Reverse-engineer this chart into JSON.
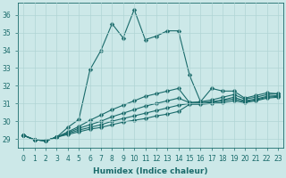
{
  "xlabel": "Humidex (Indice chaleur)",
  "bg_color": "#cce8e8",
  "line_color": "#1a6b6b",
  "grid_color": "#b0d4d4",
  "xlim": [
    -0.5,
    23.5
  ],
  "ylim": [
    28.5,
    36.7
  ],
  "yticks": [
    29,
    30,
    31,
    32,
    33,
    34,
    35,
    36
  ],
  "xticks": [
    0,
    1,
    2,
    3,
    4,
    5,
    6,
    7,
    8,
    9,
    10,
    11,
    12,
    13,
    14,
    15,
    16,
    17,
    18,
    19,
    20,
    21,
    22,
    23
  ],
  "lines": [
    [
      29.2,
      28.95,
      28.9,
      29.1,
      29.65,
      30.1,
      32.9,
      34.0,
      35.5,
      34.7,
      36.3,
      34.6,
      34.8,
      35.1,
      35.1,
      32.6,
      31.1,
      31.85,
      31.7,
      31.7,
      31.3,
      31.45,
      31.6,
      31.55
    ],
    [
      29.2,
      28.95,
      28.9,
      29.1,
      29.4,
      29.7,
      30.05,
      30.35,
      30.65,
      30.9,
      31.15,
      31.4,
      31.55,
      31.7,
      31.85,
      31.05,
      31.1,
      31.2,
      31.35,
      31.5,
      31.25,
      31.35,
      31.5,
      31.55
    ],
    [
      29.2,
      28.95,
      28.9,
      29.1,
      29.35,
      29.6,
      29.8,
      30.0,
      30.25,
      30.45,
      30.65,
      30.85,
      31.0,
      31.15,
      31.3,
      31.05,
      31.05,
      31.1,
      31.2,
      31.35,
      31.15,
      31.25,
      31.4,
      31.45
    ],
    [
      29.2,
      28.95,
      28.9,
      29.1,
      29.3,
      29.5,
      29.65,
      29.8,
      30.0,
      30.15,
      30.3,
      30.45,
      30.6,
      30.75,
      30.9,
      31.0,
      31.0,
      31.05,
      31.15,
      31.25,
      31.1,
      31.2,
      31.35,
      31.4
    ],
    [
      29.2,
      28.95,
      28.9,
      29.1,
      29.25,
      29.4,
      29.55,
      29.65,
      29.8,
      29.95,
      30.05,
      30.15,
      30.3,
      30.4,
      30.55,
      30.95,
      30.95,
      31.0,
      31.05,
      31.15,
      31.05,
      31.15,
      31.3,
      31.35
    ]
  ],
  "marker": "D",
  "markersize": 2.5,
  "linewidth": 0.8,
  "label_fontsize": 6.5,
  "tick_fontsize": 5.5
}
